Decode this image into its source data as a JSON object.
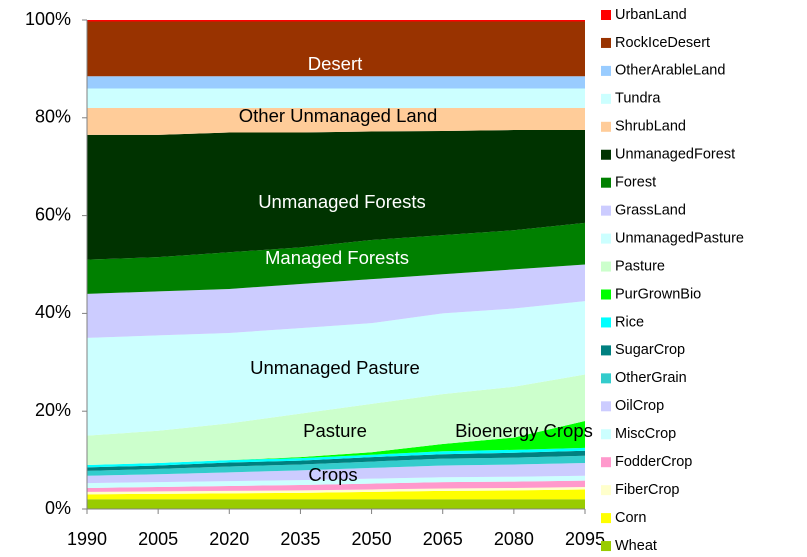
{
  "chart_data": {
    "type": "stacked_area_percent",
    "x": [
      "1990",
      "2005",
      "2020",
      "2035",
      "2050",
      "2065",
      "2080",
      "2095"
    ],
    "ylim": [
      0,
      100
    ],
    "yticks": [
      {
        "value": 0,
        "label": "0%"
      },
      {
        "value": 20,
        "label": "20%"
      },
      {
        "value": 40,
        "label": "40%"
      },
      {
        "value": 60,
        "label": "60%"
      },
      {
        "value": 80,
        "label": "80%"
      },
      {
        "value": 100,
        "label": "100%"
      }
    ],
    "annotations": [
      "Desert",
      "Other Unmanaged Land",
      "Unmanaged Forests",
      "Managed Forests",
      "Unmanaged Pasture",
      "Pasture",
      "Bioenergy Crops",
      "Crops"
    ],
    "series": [
      {
        "name": "UrbanLand",
        "color": "#ff0000",
        "values": [
          0.3,
          0.3,
          0.3,
          0.3,
          0.3,
          0.3,
          0.3,
          0.3
        ]
      },
      {
        "name": "RockIceDesert",
        "color": "#993300",
        "values": [
          11.2,
          11.2,
          11.2,
          11.2,
          11.2,
          11.2,
          11.2,
          11.2
        ]
      },
      {
        "name": "OtherArableLand",
        "color": "#99ccff",
        "values": [
          2.5,
          2.5,
          2.5,
          2.5,
          2.5,
          2.5,
          2.5,
          2.5
        ]
      },
      {
        "name": "Tundra",
        "color": "#ccffff",
        "values": [
          4,
          4,
          4,
          4,
          4,
          4,
          4,
          4
        ]
      },
      {
        "name": "ShrubLand",
        "color": "#ffcc99",
        "values": [
          5.5,
          5.5,
          5,
          5,
          4.8,
          4.7,
          4.5,
          4.5
        ]
      },
      {
        "name": "UnmanagedForest",
        "color": "#003300",
        "values": [
          25.5,
          25,
          24.5,
          23.5,
          22.2,
          21.3,
          20.5,
          19
        ]
      },
      {
        "name": "Forest",
        "color": "#008000",
        "values": [
          7,
          7,
          7.5,
          7.5,
          8,
          8,
          8,
          8.5
        ]
      },
      {
        "name": "GrassLand",
        "color": "#ccccff",
        "values": [
          9,
          9,
          9,
          9,
          9,
          8,
          8,
          7.5
        ]
      },
      {
        "name": "UnmanagedPasture",
        "color": "#ccffff",
        "values": [
          20,
          19.5,
          18.5,
          17.5,
          16.5,
          16.5,
          16,
          15
        ]
      },
      {
        "name": "Pasture",
        "color": "#ccffcc",
        "values": [
          6,
          6.6,
          7.5,
          8.9,
          9.9,
          10.2,
          10.4,
          9.5
        ]
      },
      {
        "name": "PurGrownBio",
        "color": "#00ff00",
        "values": [
          0,
          0,
          0,
          0.2,
          0.5,
          1.5,
          2.5,
          5.5
        ]
      },
      {
        "name": "Rice",
        "color": "#00ffff",
        "values": [
          0.5,
          0.5,
          0.5,
          0.5,
          0.5,
          0.6,
          0.6,
          0.6
        ]
      },
      {
        "name": "SugarCrop",
        "color": "#008080",
        "values": [
          0.7,
          0.7,
          0.8,
          0.8,
          0.9,
          0.9,
          1,
          1
        ]
      },
      {
        "name": "OtherGrain",
        "color": "#33cccc",
        "values": [
          1,
          1.1,
          1.2,
          1.2,
          1.3,
          1.4,
          1.4,
          1.5
        ]
      },
      {
        "name": "OilCrop",
        "color": "#ccccff",
        "values": [
          1.5,
          1.6,
          1.8,
          2,
          2.2,
          2.4,
          2.5,
          2.6
        ]
      },
      {
        "name": "MiscCrop",
        "color": "#ccffff",
        "values": [
          1,
          1,
          1,
          1,
          1,
          1,
          1,
          1
        ]
      },
      {
        "name": "FodderCrop",
        "color": "#ff99cc",
        "values": [
          0.8,
          0.9,
          1,
          1.1,
          1.2,
          1.3,
          1.3,
          1.3
        ]
      },
      {
        "name": "FiberCrop",
        "color": "#ffffcc",
        "values": [
          0.5,
          0.5,
          0.5,
          0.5,
          0.5,
          0.5,
          0.5,
          0.5
        ]
      },
      {
        "name": "Corn",
        "color": "#ffff00",
        "values": [
          1,
          1.1,
          1.2,
          1.3,
          1.5,
          1.7,
          1.8,
          2
        ]
      },
      {
        "name": "Wheat",
        "color": "#99cc00",
        "values": [
          2,
          2,
          2,
          2,
          2,
          2,
          2,
          2
        ]
      }
    ]
  }
}
